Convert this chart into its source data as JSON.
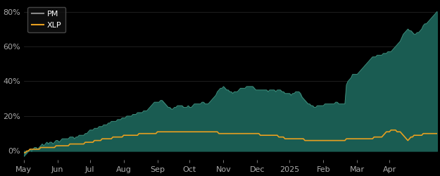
{
  "background_color": "#000000",
  "plot_bg_color": "#000000",
  "fill_color": "#1a5c52",
  "pm_line_color": "#3d8b7a",
  "xlp_line_color": "#e8a020",
  "ylim": [
    -0.05,
    0.85
  ],
  "yticks": [
    0.0,
    0.2,
    0.4,
    0.6,
    0.8
  ],
  "ytick_labels": [
    "0%",
    "20%",
    "40%",
    "60%",
    "80%"
  ],
  "xtick_labels": [
    "May",
    "Jun",
    "Jul",
    "Aug",
    "Sep",
    "Oct",
    "Nov",
    "Dec",
    "2025",
    "Feb",
    "Mar",
    "Apr"
  ],
  "xtick_positions": [
    0,
    22,
    43,
    65,
    87,
    108,
    130,
    152,
    173,
    195,
    217,
    238
  ],
  "legend_pm_label": "PM",
  "legend_xlp_label": "XLP",
  "grid_color": "#2a2a2a",
  "tick_color": "#aaaaaa",
  "pm_data": [
    -0.03,
    -0.02,
    -0.01,
    0.0,
    0.01,
    0.0,
    0.01,
    0.02,
    0.02,
    0.01,
    0.02,
    0.03,
    0.04,
    0.03,
    0.04,
    0.05,
    0.04,
    0.05,
    0.05,
    0.04,
    0.05,
    0.06,
    0.06,
    0.05,
    0.06,
    0.07,
    0.07,
    0.07,
    0.07,
    0.07,
    0.08,
    0.08,
    0.08,
    0.07,
    0.08,
    0.08,
    0.09,
    0.09,
    0.09,
    0.09,
    0.1,
    0.1,
    0.11,
    0.12,
    0.12,
    0.12,
    0.13,
    0.13,
    0.13,
    0.14,
    0.14,
    0.14,
    0.15,
    0.15,
    0.15,
    0.16,
    0.16,
    0.17,
    0.17,
    0.17,
    0.17,
    0.18,
    0.18,
    0.18,
    0.19,
    0.19,
    0.19,
    0.2,
    0.2,
    0.2,
    0.2,
    0.21,
    0.21,
    0.21,
    0.22,
    0.22,
    0.22,
    0.22,
    0.23,
    0.23,
    0.23,
    0.24,
    0.25,
    0.26,
    0.27,
    0.28,
    0.28,
    0.28,
    0.28,
    0.29,
    0.29,
    0.28,
    0.27,
    0.26,
    0.25,
    0.25,
    0.24,
    0.24,
    0.25,
    0.25,
    0.26,
    0.26,
    0.26,
    0.26,
    0.25,
    0.25,
    0.25,
    0.26,
    0.25,
    0.25,
    0.26,
    0.27,
    0.27,
    0.27,
    0.27,
    0.27,
    0.28,
    0.28,
    0.27,
    0.27,
    0.27,
    0.28,
    0.29,
    0.3,
    0.31,
    0.32,
    0.34,
    0.35,
    0.36,
    0.36,
    0.37,
    0.36,
    0.35,
    0.35,
    0.34,
    0.34,
    0.33,
    0.34,
    0.34,
    0.34,
    0.35,
    0.36,
    0.36,
    0.36,
    0.36,
    0.37,
    0.37,
    0.37,
    0.37,
    0.37,
    0.36,
    0.35,
    0.35,
    0.35,
    0.35,
    0.35,
    0.35,
    0.35,
    0.35,
    0.34,
    0.35,
    0.35,
    0.35,
    0.35,
    0.34,
    0.35,
    0.35,
    0.35,
    0.34,
    0.34,
    0.33,
    0.33,
    0.33,
    0.33,
    0.32,
    0.33,
    0.33,
    0.34,
    0.34,
    0.34,
    0.33,
    0.31,
    0.3,
    0.29,
    0.28,
    0.27,
    0.27,
    0.26,
    0.26,
    0.25,
    0.25,
    0.26,
    0.26,
    0.26,
    0.26,
    0.26,
    0.27,
    0.27,
    0.27,
    0.27,
    0.27,
    0.27,
    0.27,
    0.28,
    0.28,
    0.27,
    0.27,
    0.27,
    0.27,
    0.27,
    0.38,
    0.4,
    0.41,
    0.42,
    0.44,
    0.44,
    0.44,
    0.44,
    0.45,
    0.46,
    0.47,
    0.48,
    0.49,
    0.5,
    0.51,
    0.52,
    0.53,
    0.54,
    0.54,
    0.54,
    0.55,
    0.55,
    0.55,
    0.55,
    0.56,
    0.56,
    0.56,
    0.57,
    0.57,
    0.57,
    0.58,
    0.59,
    0.6,
    0.61,
    0.62,
    0.63,
    0.65,
    0.67,
    0.68,
    0.69,
    0.7,
    0.69,
    0.69,
    0.68,
    0.67,
    0.67,
    0.68,
    0.68,
    0.69,
    0.7,
    0.72,
    0.73,
    0.73,
    0.74,
    0.75,
    0.76,
    0.77,
    0.78,
    0.79,
    0.8
  ],
  "xlp_data": [
    -0.01,
    -0.01,
    0.0,
    0.0,
    0.01,
    0.01,
    0.01,
    0.01,
    0.01,
    0.01,
    0.01,
    0.02,
    0.02,
    0.02,
    0.02,
    0.02,
    0.02,
    0.02,
    0.02,
    0.02,
    0.02,
    0.03,
    0.03,
    0.03,
    0.03,
    0.03,
    0.03,
    0.03,
    0.03,
    0.03,
    0.04,
    0.04,
    0.04,
    0.04,
    0.04,
    0.04,
    0.04,
    0.04,
    0.04,
    0.04,
    0.05,
    0.05,
    0.05,
    0.05,
    0.05,
    0.05,
    0.06,
    0.06,
    0.06,
    0.06,
    0.06,
    0.07,
    0.07,
    0.07,
    0.07,
    0.07,
    0.07,
    0.07,
    0.08,
    0.08,
    0.08,
    0.08,
    0.08,
    0.08,
    0.08,
    0.09,
    0.09,
    0.09,
    0.09,
    0.09,
    0.09,
    0.09,
    0.09,
    0.09,
    0.09,
    0.1,
    0.1,
    0.1,
    0.1,
    0.1,
    0.1,
    0.1,
    0.1,
    0.1,
    0.1,
    0.1,
    0.1,
    0.11,
    0.11,
    0.11,
    0.11,
    0.11,
    0.11,
    0.11,
    0.11,
    0.11,
    0.11,
    0.11,
    0.11,
    0.11,
    0.11,
    0.11,
    0.11,
    0.11,
    0.11,
    0.11,
    0.11,
    0.11,
    0.11,
    0.11,
    0.11,
    0.11,
    0.11,
    0.11,
    0.11,
    0.11,
    0.11,
    0.11,
    0.11,
    0.11,
    0.11,
    0.11,
    0.11,
    0.11,
    0.11,
    0.11,
    0.11,
    0.1,
    0.1,
    0.1,
    0.1,
    0.1,
    0.1,
    0.1,
    0.1,
    0.1,
    0.1,
    0.1,
    0.1,
    0.1,
    0.1,
    0.1,
    0.1,
    0.1,
    0.1,
    0.1,
    0.1,
    0.1,
    0.1,
    0.1,
    0.1,
    0.1,
    0.1,
    0.1,
    0.09,
    0.09,
    0.09,
    0.09,
    0.09,
    0.09,
    0.09,
    0.09,
    0.09,
    0.09,
    0.09,
    0.09,
    0.08,
    0.08,
    0.08,
    0.08,
    0.07,
    0.07,
    0.07,
    0.07,
    0.07,
    0.07,
    0.07,
    0.07,
    0.07,
    0.07,
    0.07,
    0.07,
    0.07,
    0.06,
    0.06,
    0.06,
    0.06,
    0.06,
    0.06,
    0.06,
    0.06,
    0.06,
    0.06,
    0.06,
    0.06,
    0.06,
    0.06,
    0.06,
    0.06,
    0.06,
    0.06,
    0.06,
    0.06,
    0.06,
    0.06,
    0.06,
    0.06,
    0.06,
    0.06,
    0.06,
    0.07,
    0.07,
    0.07,
    0.07,
    0.07,
    0.07,
    0.07,
    0.07,
    0.07,
    0.07,
    0.07,
    0.07,
    0.07,
    0.07,
    0.07,
    0.07,
    0.07,
    0.07,
    0.08,
    0.08,
    0.08,
    0.08,
    0.08,
    0.08,
    0.09,
    0.1,
    0.11,
    0.11,
    0.11,
    0.12,
    0.12,
    0.12,
    0.12,
    0.11,
    0.11,
    0.11,
    0.1,
    0.09,
    0.08,
    0.07,
    0.06,
    0.07,
    0.08,
    0.08,
    0.09,
    0.09,
    0.09,
    0.09,
    0.09,
    0.09,
    0.1,
    0.1,
    0.1,
    0.1,
    0.1,
    0.1,
    0.1,
    0.1,
    0.1,
    0.1
  ]
}
